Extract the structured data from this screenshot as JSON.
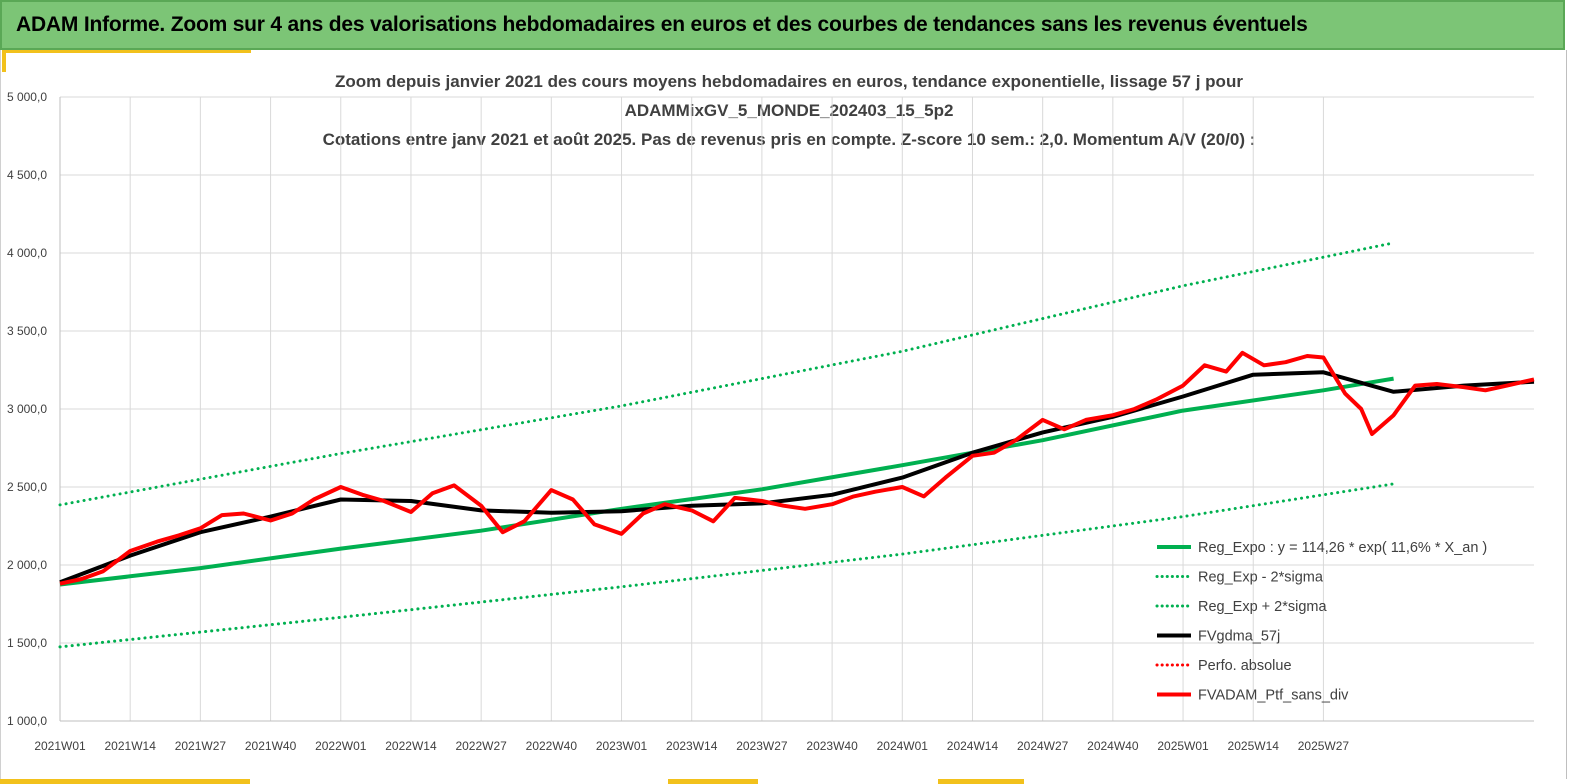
{
  "banner": {
    "title": "ADAM Informe. Zoom sur 4 ans des valorisations hebdomadaires en euros et des courbes de tendances sans les revenus éventuels"
  },
  "colors": {
    "banner_bg": "#7cc576",
    "accent": "#f2c11c",
    "trend": "#00b050",
    "gdma": "#000000",
    "portfolio": "#ff0000",
    "grid": "#d9d9d9"
  },
  "chart_data": {
    "type": "line",
    "title_lines": [
      "Zoom depuis janvier 2021 des cours moyens hebdomadaires  en euros, tendance exponentielle, lissage 57 j pour",
      "ADAMMixGV_5_MONDE_202403_15_5p2",
      "Cotations entre janv 2021 et août 2025. Pas de revenus pris en compte. Z-score 10 sem.: 2,0. Momentum A/V (20/0) :"
    ],
    "xlabel": "",
    "ylabel": "",
    "ylim": [
      1000,
      5000
    ],
    "y_ticks": [
      "1 000,0",
      "1 500,0",
      "2 000,0",
      "2 500,0",
      "3 000,0",
      "3 500,0",
      "4 000,0",
      "4 500,0",
      "5 000,0"
    ],
    "x_ticks": [
      "2021W01",
      "2021W14",
      "2021W27",
      "2021W40",
      "2022W01",
      "2022W14",
      "2022W27",
      "2022W40",
      "2023W01",
      "2023W14",
      "2023W27",
      "2023W40",
      "2024W01",
      "2024W14",
      "2024W27",
      "2024W40",
      "2025W01",
      "2025W14",
      "2025W27"
    ],
    "grid": true,
    "legend_position": "right",
    "series": [
      {
        "name": "Reg_Expo : y = 114,26 * exp( 11,6% *  X_an )",
        "style": "solid",
        "color": "#00b050",
        "width": 4,
        "points": [
          [
            0,
            1875
          ],
          [
            26,
            1980
          ],
          [
            52,
            2105
          ],
          [
            78,
            2220
          ],
          [
            104,
            2360
          ],
          [
            130,
            2485
          ],
          [
            156,
            2640
          ],
          [
            182,
            2800
          ],
          [
            208,
            2990
          ],
          [
            234,
            3120
          ],
          [
            247,
            3195
          ]
        ]
      },
      {
        "name": "Reg_Exp - 2*sigma",
        "style": "dotted",
        "color": "#00b050",
        "width": 3,
        "points": [
          [
            0,
            1475
          ],
          [
            52,
            1665
          ],
          [
            104,
            1860
          ],
          [
            156,
            2070
          ],
          [
            208,
            2310
          ],
          [
            247,
            2520
          ]
        ]
      },
      {
        "name": "Reg_Exp + 2*sigma",
        "style": "dotted",
        "color": "#00b050",
        "width": 3,
        "points": [
          [
            0,
            2385
          ],
          [
            52,
            2715
          ],
          [
            104,
            3020
          ],
          [
            156,
            3370
          ],
          [
            208,
            3790
          ],
          [
            247,
            4065
          ]
        ]
      },
      {
        "name": "FVgdma_57j",
        "style": "solid",
        "color": "#000000",
        "width": 4,
        "points": [
          [
            0,
            1890
          ],
          [
            13,
            2060
          ],
          [
            26,
            2210
          ],
          [
            39,
            2310
          ],
          [
            52,
            2420
          ],
          [
            65,
            2410
          ],
          [
            78,
            2350
          ],
          [
            91,
            2335
          ],
          [
            104,
            2345
          ],
          [
            117,
            2380
          ],
          [
            130,
            2395
          ],
          [
            143,
            2450
          ],
          [
            156,
            2560
          ],
          [
            169,
            2720
          ],
          [
            182,
            2850
          ],
          [
            195,
            2950
          ],
          [
            208,
            3080
          ],
          [
            221,
            3220
          ],
          [
            234,
            3235
          ],
          [
            247,
            3110
          ],
          [
            260,
            3150
          ],
          [
            273,
            3175
          ]
        ]
      },
      {
        "name": "Perfo. absolue",
        "style": "dotted",
        "color": "#ff0000",
        "width": 3,
        "points": []
      },
      {
        "name": "FVADAM_Ptf_sans_div",
        "style": "solid",
        "color": "#ff0000",
        "width": 4,
        "points": [
          [
            0,
            1880
          ],
          [
            4,
            1910
          ],
          [
            8,
            1960
          ],
          [
            13,
            2090
          ],
          [
            18,
            2150
          ],
          [
            22,
            2190
          ],
          [
            26,
            2235
          ],
          [
            30,
            2320
          ],
          [
            34,
            2330
          ],
          [
            39,
            2285
          ],
          [
            43,
            2330
          ],
          [
            47,
            2420
          ],
          [
            52,
            2500
          ],
          [
            56,
            2450
          ],
          [
            60,
            2410
          ],
          [
            65,
            2340
          ],
          [
            69,
            2460
          ],
          [
            73,
            2510
          ],
          [
            78,
            2380
          ],
          [
            82,
            2210
          ],
          [
            86,
            2280
          ],
          [
            91,
            2480
          ],
          [
            95,
            2420
          ],
          [
            99,
            2260
          ],
          [
            104,
            2200
          ],
          [
            108,
            2330
          ],
          [
            112,
            2390
          ],
          [
            117,
            2350
          ],
          [
            121,
            2280
          ],
          [
            125,
            2430
          ],
          [
            130,
            2410
          ],
          [
            134,
            2380
          ],
          [
            138,
            2360
          ],
          [
            143,
            2390
          ],
          [
            147,
            2440
          ],
          [
            151,
            2470
          ],
          [
            156,
            2500
          ],
          [
            160,
            2440
          ],
          [
            164,
            2560
          ],
          [
            169,
            2700
          ],
          [
            173,
            2720
          ],
          [
            177,
            2800
          ],
          [
            182,
            2930
          ],
          [
            186,
            2870
          ],
          [
            190,
            2930
          ],
          [
            195,
            2960
          ],
          [
            199,
            3000
          ],
          [
            203,
            3060
          ],
          [
            208,
            3150
          ],
          [
            212,
            3280
          ],
          [
            216,
            3240
          ],
          [
            219,
            3360
          ],
          [
            223,
            3280
          ],
          [
            227,
            3300
          ],
          [
            231,
            3340
          ],
          [
            234,
            3330
          ],
          [
            238,
            3100
          ],
          [
            241,
            3000
          ],
          [
            243,
            2840
          ],
          [
            247,
            2960
          ],
          [
            251,
            3150
          ],
          [
            255,
            3160
          ],
          [
            260,
            3140
          ],
          [
            264,
            3120
          ],
          [
            268,
            3150
          ],
          [
            273,
            3190
          ]
        ]
      }
    ]
  }
}
